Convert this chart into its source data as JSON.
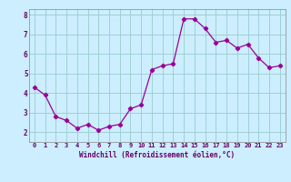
{
  "x": [
    0,
    1,
    2,
    3,
    4,
    5,
    6,
    7,
    8,
    9,
    10,
    11,
    12,
    13,
    14,
    15,
    16,
    17,
    18,
    19,
    20,
    21,
    22,
    23
  ],
  "y": [
    4.3,
    3.9,
    2.8,
    2.6,
    2.2,
    2.4,
    2.1,
    2.3,
    2.4,
    3.2,
    3.4,
    5.2,
    5.4,
    5.5,
    7.8,
    7.8,
    7.3,
    6.6,
    6.7,
    6.3,
    6.5,
    5.8,
    5.3,
    5.4
  ],
  "xlabel": "Windchill (Refroidissement éolien,°C)",
  "bg_color": "#cceeff",
  "line_color": "#990099",
  "grid_color": "#99cccc",
  "ylim": [
    1.5,
    8.3
  ],
  "xlim": [
    -0.5,
    23.5
  ],
  "yticks": [
    2,
    3,
    4,
    5,
    6,
    7,
    8
  ],
  "xticks": [
    0,
    1,
    2,
    3,
    4,
    5,
    6,
    7,
    8,
    9,
    10,
    11,
    12,
    13,
    14,
    15,
    16,
    17,
    18,
    19,
    20,
    21,
    22,
    23
  ],
  "xtick_labels": [
    "0",
    "1",
    "2",
    "3",
    "4",
    "5",
    "6",
    "7",
    "8",
    "9",
    "10",
    "11",
    "12",
    "13",
    "14",
    "15",
    "16",
    "17",
    "18",
    "19",
    "20",
    "21",
    "22",
    "23"
  ]
}
